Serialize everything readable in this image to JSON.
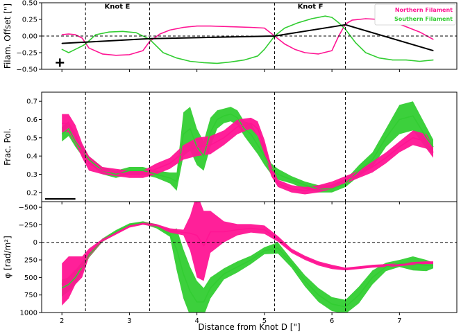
{
  "colors": {
    "northern": "#ff1493",
    "southern": "#32cd32",
    "model": "#000000",
    "guide": "#000000"
  },
  "chart_data": [
    {
      "type": "line",
      "ylabel": "Filam. Offset [\"]",
      "xlim": [
        1.7,
        7.85
      ],
      "ylim": [
        -0.5,
        0.5
      ],
      "yticks": [
        -0.5,
        -0.25,
        0.0,
        0.25,
        0.5
      ],
      "ytick_labels": [
        "−0.50",
        "−0.25",
        "0.00",
        "0.25",
        "0.50"
      ],
      "vlines": [
        2.35,
        3.3,
        5.15,
        6.2
      ],
      "hline": 0,
      "annotations": [
        {
          "text": "Knot E",
          "x": 2.82,
          "y": 0.41
        },
        {
          "text": "Knot F",
          "x": 5.68,
          "y": 0.41
        }
      ],
      "legend": {
        "placement": "top-right",
        "entries": [
          "Northern Filament",
          "Southern Filament"
        ]
      },
      "marker": {
        "symbol": "+",
        "x": 1.97,
        "y": -0.4
      },
      "series": [
        {
          "name": "Northern Filament",
          "color_key": "northern",
          "x": [
            2.0,
            2.1,
            2.2,
            2.3,
            2.4,
            2.6,
            2.8,
            3.0,
            3.2,
            3.3,
            3.45,
            3.6,
            3.8,
            4.0,
            4.2,
            4.5,
            4.8,
            5.0,
            5.15,
            5.3,
            5.45,
            5.6,
            5.8,
            6.0,
            6.1,
            6.2,
            6.3,
            6.5,
            6.7,
            6.9,
            7.1,
            7.3,
            7.5
          ],
          "y": [
            0.02,
            0.03,
            0.02,
            -0.03,
            -0.18,
            -0.27,
            -0.29,
            -0.28,
            -0.22,
            -0.08,
            0.03,
            0.09,
            0.13,
            0.15,
            0.15,
            0.14,
            0.13,
            0.12,
            0.0,
            -0.12,
            -0.2,
            -0.25,
            -0.27,
            -0.22,
            0.0,
            0.18,
            0.24,
            0.26,
            0.25,
            0.22,
            0.14,
            0.06,
            -0.05
          ]
        },
        {
          "name": "Southern Filament",
          "color_key": "southern",
          "x": [
            2.0,
            2.1,
            2.2,
            2.3,
            2.35,
            2.5,
            2.7,
            2.9,
            3.1,
            3.3,
            3.5,
            3.7,
            3.9,
            4.1,
            4.3,
            4.5,
            4.7,
            4.9,
            5.0,
            5.15,
            5.3,
            5.5,
            5.7,
            5.9,
            6.0,
            6.1,
            6.2,
            6.35,
            6.5,
            6.7,
            6.9,
            7.1,
            7.3,
            7.5
          ],
          "y": [
            -0.2,
            -0.25,
            -0.2,
            -0.15,
            -0.12,
            0.02,
            0.06,
            0.07,
            0.05,
            -0.05,
            -0.25,
            -0.33,
            -0.38,
            -0.4,
            -0.41,
            -0.39,
            -0.36,
            -0.3,
            -0.2,
            0.0,
            0.12,
            0.2,
            0.26,
            0.3,
            0.28,
            0.2,
            0.1,
            -0.1,
            -0.25,
            -0.33,
            -0.36,
            -0.36,
            -0.38,
            -0.36
          ]
        },
        {
          "name": "",
          "color_key": "model",
          "x": [
            2.0,
            3.3,
            5.15,
            6.2,
            7.5
          ],
          "y": [
            -0.11,
            -0.04,
            0.0,
            0.17,
            -0.22
          ]
        }
      ]
    },
    {
      "type": "line",
      "ylabel": "Frac. Pol.",
      "xlim": [
        1.7,
        7.85
      ],
      "ylim": [
        0.15,
        0.75
      ],
      "yticks": [
        0.2,
        0.3,
        0.4,
        0.5,
        0.6,
        0.7
      ],
      "ytick_labels": [
        "0.2",
        "0.3",
        "0.4",
        "0.5",
        "0.6",
        "0.7"
      ],
      "vlines": [
        2.35,
        3.3,
        5.15,
        6.2
      ],
      "scalebar": {
        "x0": 1.75,
        "x1": 2.2,
        "y": 0.165
      },
      "series": [
        {
          "name": "Southern Filament",
          "color_key": "southern",
          "x": [
            2.0,
            2.1,
            2.2,
            2.3,
            2.4,
            2.6,
            2.8,
            3.0,
            3.2,
            3.4,
            3.6,
            3.7,
            3.8,
            3.9,
            4.0,
            4.1,
            4.2,
            4.3,
            4.4,
            4.5,
            4.6,
            4.7,
            4.8,
            4.9,
            5.0,
            5.1,
            5.2,
            5.4,
            5.6,
            5.8,
            6.0,
            6.2,
            6.4,
            6.6,
            6.8,
            7.0,
            7.2,
            7.4,
            7.5
          ],
          "y": [
            0.52,
            0.55,
            0.48,
            0.43,
            0.38,
            0.32,
            0.3,
            0.32,
            0.32,
            0.3,
            0.28,
            0.26,
            0.52,
            0.55,
            0.45,
            0.4,
            0.53,
            0.6,
            0.62,
            0.63,
            0.61,
            0.55,
            0.52,
            0.46,
            0.4,
            0.33,
            0.3,
            0.27,
            0.24,
            0.22,
            0.22,
            0.25,
            0.32,
            0.38,
            0.5,
            0.6,
            0.62,
            0.5,
            0.45
          ],
          "band": [
            0.04,
            0.04,
            0.03,
            0.03,
            0.02,
            0.02,
            0.02,
            0.02,
            0.02,
            0.02,
            0.03,
            0.05,
            0.12,
            0.12,
            0.1,
            0.08,
            0.08,
            0.05,
            0.04,
            0.04,
            0.04,
            0.04,
            0.06,
            0.05,
            0.05,
            0.03,
            0.03,
            0.02,
            0.02,
            0.02,
            0.02,
            0.02,
            0.03,
            0.04,
            0.05,
            0.08,
            0.08,
            0.06,
            0.04
          ]
        },
        {
          "name": "Northern Filament",
          "color_key": "northern",
          "x": [
            2.0,
            2.1,
            2.2,
            2.3,
            2.4,
            2.6,
            2.8,
            3.0,
            3.2,
            3.4,
            3.6,
            3.8,
            4.0,
            4.2,
            4.4,
            4.6,
            4.8,
            4.9,
            5.0,
            5.1,
            5.2,
            5.4,
            5.6,
            5.8,
            6.0,
            6.2,
            6.4,
            6.6,
            6.8,
            7.0,
            7.2,
            7.4,
            7.5
          ],
          "y": [
            0.58,
            0.58,
            0.52,
            0.43,
            0.36,
            0.32,
            0.31,
            0.3,
            0.3,
            0.33,
            0.36,
            0.42,
            0.45,
            0.46,
            0.5,
            0.56,
            0.58,
            0.55,
            0.45,
            0.32,
            0.25,
            0.22,
            0.21,
            0.22,
            0.24,
            0.27,
            0.3,
            0.34,
            0.39,
            0.45,
            0.5,
            0.48,
            0.42
          ],
          "band": [
            0.05,
            0.05,
            0.05,
            0.04,
            0.04,
            0.02,
            0.02,
            0.02,
            0.02,
            0.03,
            0.03,
            0.04,
            0.05,
            0.05,
            0.04,
            0.04,
            0.03,
            0.04,
            0.04,
            0.03,
            0.02,
            0.02,
            0.02,
            0.02,
            0.02,
            0.02,
            0.02,
            0.03,
            0.03,
            0.03,
            0.04,
            0.04,
            0.03
          ]
        }
      ]
    },
    {
      "type": "line",
      "ylabel": "φ [rad/m²]",
      "xlabel": "Distance from Knot D [\"]",
      "xlim": [
        1.7,
        7.85
      ],
      "ylim": [
        1000,
        -580
      ],
      "yticks": [
        -500,
        -250,
        0,
        250,
        500,
        750,
        1000
      ],
      "ytick_labels": [
        "−500",
        "−250",
        "0",
        "250",
        "500",
        "750",
        "1000"
      ],
      "xticks": [
        2,
        3,
        4,
        5,
        6,
        7
      ],
      "xtick_labels": [
        "2",
        "3",
        "4",
        "5",
        "6",
        "7"
      ],
      "vlines": [
        2.35,
        3.3,
        5.15,
        6.2
      ],
      "hline": 0,
      "series": [
        {
          "name": "Southern Filament",
          "color_key": "southern",
          "x": [
            2.0,
            2.1,
            2.2,
            2.3,
            2.4,
            2.6,
            2.8,
            3.0,
            3.2,
            3.4,
            3.6,
            3.7,
            3.8,
            3.9,
            4.0,
            4.1,
            4.2,
            4.4,
            4.6,
            4.8,
            5.0,
            5.2,
            5.4,
            5.6,
            5.8,
            6.0,
            6.2,
            6.4,
            6.6,
            6.8,
            7.0,
            7.2,
            7.4,
            7.5
          ],
          "y": [
            650,
            600,
            500,
            350,
            180,
            -30,
            -150,
            -250,
            -280,
            -230,
            -120,
            100,
            450,
            700,
            850,
            850,
            650,
            450,
            350,
            250,
            120,
            80,
            300,
            550,
            750,
            880,
            920,
            750,
            500,
            350,
            300,
            300,
            330,
            330
          ],
          "band": [
            120,
            100,
            100,
            80,
            40,
            25,
            25,
            20,
            20,
            30,
            40,
            300,
            350,
            350,
            300,
            200,
            150,
            80,
            80,
            60,
            50,
            80,
            60,
            80,
            100,
            100,
            100,
            120,
            100,
            60,
            50,
            100,
            80,
            40
          ]
        },
        {
          "name": "Northern Filament",
          "color_key": "northern",
          "x": [
            2.0,
            2.1,
            2.2,
            2.3,
            2.4,
            2.6,
            2.8,
            3.0,
            3.2,
            3.4,
            3.6,
            3.8,
            3.9,
            4.0,
            4.1,
            4.2,
            4.4,
            4.6,
            4.8,
            5.0,
            5.2,
            5.4,
            5.6,
            5.8,
            6.0,
            6.2,
            6.4,
            6.6,
            6.8,
            7.0,
            7.2,
            7.4,
            7.5
          ],
          "y": [
            600,
            500,
            400,
            350,
            150,
            -30,
            -130,
            -230,
            -270,
            -240,
            -170,
            -140,
            -130,
            -100,
            50,
            -150,
            -150,
            -180,
            -200,
            -180,
            -50,
            120,
            220,
            300,
            350,
            380,
            360,
            340,
            330,
            320,
            300,
            290,
            290
          ],
          "band": [
            300,
            300,
            200,
            150,
            60,
            20,
            20,
            20,
            20,
            20,
            30,
            40,
            250,
            600,
            500,
            300,
            150,
            80,
            60,
            60,
            40,
            30,
            30,
            30,
            30,
            20,
            20,
            20,
            20,
            20,
            20,
            20,
            20
          ]
        }
      ]
    }
  ]
}
